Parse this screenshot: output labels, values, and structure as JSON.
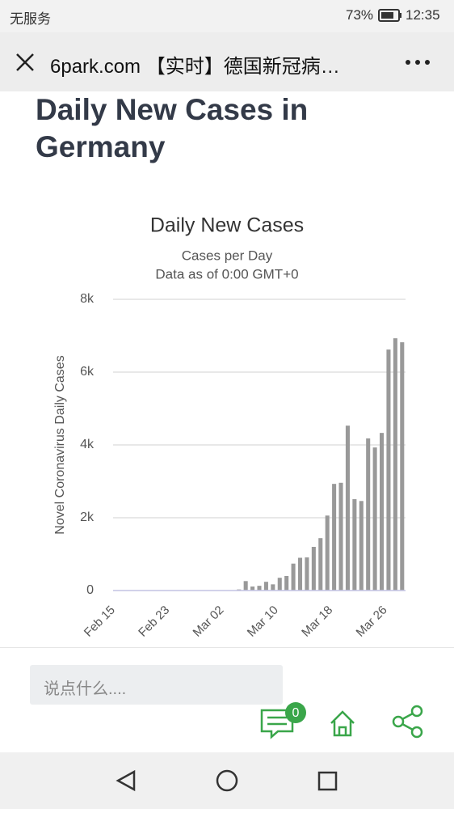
{
  "status_bar": {
    "carrier": "无服务",
    "battery": "73%",
    "time": "12:35"
  },
  "nav": {
    "title": "6park.com 【实时】德国新冠病…"
  },
  "heading": "Daily New Cases in Germany",
  "chart_data": {
    "type": "bar",
    "title": "Daily New Cases",
    "subtitle": [
      "Cases per Day",
      "Data as of 0:00 GMT+0"
    ],
    "y_label": "Novel Coronavirus Daily Cases",
    "categories": [
      "Feb 15",
      null,
      null,
      null,
      null,
      null,
      null,
      null,
      "Feb 23",
      null,
      null,
      null,
      null,
      null,
      null,
      null,
      "Mar 02",
      null,
      null,
      null,
      null,
      null,
      null,
      null,
      "Mar 10",
      null,
      null,
      null,
      null,
      null,
      null,
      null,
      "Mar 18",
      null,
      null,
      null,
      null,
      null,
      null,
      null,
      "Mar 26",
      null,
      null
    ],
    "values": [
      0,
      0,
      0,
      0,
      0,
      0,
      0,
      0,
      0,
      0,
      0,
      0,
      0,
      0,
      0,
      0,
      0,
      0,
      30,
      260,
      110,
      130,
      240,
      170,
      350,
      400,
      740,
      900,
      910,
      1200,
      1440,
      2060,
      2930,
      2960,
      4530,
      2510,
      2460,
      4180,
      3930,
      4330,
      6620,
      6930,
      6820
    ],
    "color": "#999999",
    "ylim": [
      0,
      8000
    ],
    "yticks": [
      0,
      {
        "value": 2000,
        "label": "2k"
      },
      {
        "value": 4000,
        "label": "4k"
      },
      {
        "value": 6000,
        "label": "6k"
      },
      {
        "value": 8000,
        "label": "8k"
      }
    ],
    "grid": true
  },
  "comment": {
    "placeholder": "说点什么....",
    "count": 0
  }
}
